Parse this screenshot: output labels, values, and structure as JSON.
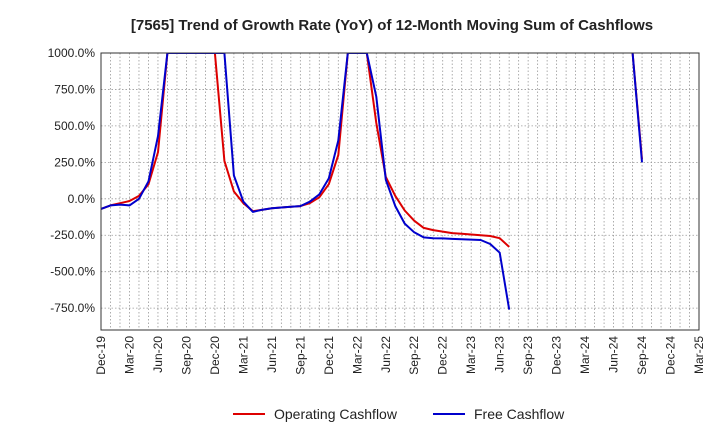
{
  "chart_data": {
    "type": "line",
    "title": "[7565]  Trend of Growth Rate (YoY) of 12-Month Moving Sum of Cashflows",
    "xlabel": "",
    "ylabel": "",
    "ylim": [
      -900,
      1000
    ],
    "y_ticks": [
      1000,
      750,
      500,
      250,
      0,
      -250,
      -500,
      -750
    ],
    "y_tick_labels": [
      "1000.0%",
      "750.0%",
      "500.0%",
      "250.0%",
      "0.0%",
      "-250.0%",
      "-500.0%",
      "-750.0%"
    ],
    "x_ticks": [
      "2019-12",
      "2020-03",
      "2020-06",
      "2020-09",
      "2020-12",
      "2021-03",
      "2021-06",
      "2021-09",
      "2021-12",
      "2022-03",
      "2022-06",
      "2022-09",
      "2022-12",
      "2023-03",
      "2023-06",
      "2023-09",
      "2023-12",
      "2024-03",
      "2024-06",
      "2024-09",
      "2024-12",
      "2025-03"
    ],
    "x_tick_labels": [
      "Dec-19",
      "Mar-20",
      "Jun-20",
      "Sep-20",
      "Dec-20",
      "Mar-21",
      "Jun-21",
      "Sep-21",
      "Dec-21",
      "Mar-22",
      "Jun-22",
      "Sep-22",
      "Dec-22",
      "Mar-23",
      "Jun-23",
      "Sep-23",
      "Dec-23",
      "Mar-24",
      "Jun-24",
      "Sep-24",
      "Dec-24",
      "Mar-25"
    ],
    "grid": true,
    "legend_position": "bottom",
    "series": [
      {
        "name": "Operating Cashflow",
        "color": "#dd0000",
        "points": [
          [
            "2019-12",
            -70
          ],
          [
            "2020-01",
            -45
          ],
          [
            "2020-02",
            -30
          ],
          [
            "2020-03",
            -15
          ],
          [
            "2020-04",
            20
          ],
          [
            "2020-05",
            100
          ],
          [
            "2020-06",
            320
          ],
          [
            "2020-07",
            1000
          ],
          [
            "2020-12",
            1000
          ],
          [
            "2021-01",
            260
          ],
          [
            "2021-02",
            50
          ],
          [
            "2021-03",
            -30
          ],
          [
            "2021-04",
            -85
          ],
          [
            "2021-05",
            -75
          ],
          [
            "2021-06",
            -65
          ],
          [
            "2021-07",
            -60
          ],
          [
            "2021-08",
            -55
          ],
          [
            "2021-09",
            -50
          ],
          [
            "2021-10",
            -30
          ],
          [
            "2021-11",
            10
          ],
          [
            "2021-12",
            100
          ],
          [
            "2022-01",
            300
          ],
          [
            "2022-02",
            1000
          ],
          [
            "2022-04",
            1000
          ],
          [
            "2022-05",
            520
          ],
          [
            "2022-06",
            150
          ],
          [
            "2022-07",
            20
          ],
          [
            "2022-08",
            -80
          ],
          [
            "2022-09",
            -150
          ],
          [
            "2022-10",
            -200
          ],
          [
            "2022-11",
            -215
          ],
          [
            "2022-12",
            -225
          ],
          [
            "2023-01",
            -235
          ],
          [
            "2023-02",
            -240
          ],
          [
            "2023-03",
            -245
          ],
          [
            "2023-04",
            -250
          ],
          [
            "2023-05",
            -255
          ],
          [
            "2023-06",
            -270
          ],
          [
            "2023-07",
            -330
          ],
          null,
          [
            "2024-08",
            1000
          ],
          [
            "2024-09",
            270
          ]
        ]
      },
      {
        "name": "Free Cashflow",
        "color": "#0000cc",
        "points": [
          [
            "2019-12",
            -70
          ],
          [
            "2020-01",
            -45
          ],
          [
            "2020-02",
            -40
          ],
          [
            "2020-03",
            -45
          ],
          [
            "2020-04",
            0
          ],
          [
            "2020-05",
            120
          ],
          [
            "2020-06",
            430
          ],
          [
            "2020-07",
            1000
          ],
          [
            "2021-01",
            1000
          ],
          [
            "2021-02",
            160
          ],
          [
            "2021-03",
            -20
          ],
          [
            "2021-04",
            -90
          ],
          [
            "2021-05",
            -75
          ],
          [
            "2021-06",
            -65
          ],
          [
            "2021-07",
            -60
          ],
          [
            "2021-08",
            -55
          ],
          [
            "2021-09",
            -50
          ],
          [
            "2021-10",
            -20
          ],
          [
            "2021-11",
            30
          ],
          [
            "2021-12",
            140
          ],
          [
            "2022-01",
            400
          ],
          [
            "2022-02",
            1000
          ],
          [
            "2022-04",
            1000
          ],
          [
            "2022-05",
            700
          ],
          [
            "2022-06",
            130
          ],
          [
            "2022-07",
            -50
          ],
          [
            "2022-08",
            -170
          ],
          [
            "2022-09",
            -230
          ],
          [
            "2022-10",
            -265
          ],
          [
            "2022-11",
            -270
          ],
          [
            "2022-12",
            -272
          ],
          [
            "2023-01",
            -275
          ],
          [
            "2023-02",
            -278
          ],
          [
            "2023-03",
            -280
          ],
          [
            "2023-04",
            -283
          ],
          [
            "2023-05",
            -310
          ],
          [
            "2023-06",
            -370
          ],
          [
            "2023-07",
            -760
          ],
          null,
          [
            "2024-08",
            1000
          ],
          [
            "2024-09",
            250
          ]
        ]
      }
    ]
  }
}
